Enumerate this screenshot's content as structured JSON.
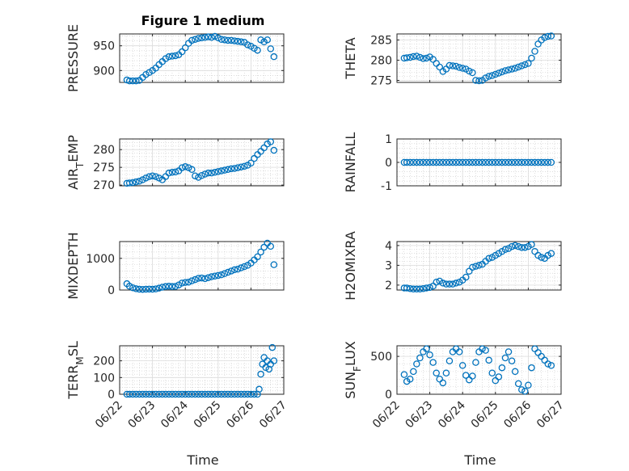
{
  "figure": {
    "title": "Figure 1 medium"
  },
  "colors": {
    "marker": "#0072bd",
    "grid": "#c8c8c8",
    "axis": "#262626"
  },
  "chart_data": [
    {
      "type": "scatter",
      "ylabel": "PRESSURE",
      "ylim": [
        876,
        974
      ],
      "yticks": [
        900,
        950
      ],
      "xlim": [
        0,
        5
      ],
      "x": [
        0.22,
        0.3,
        0.4,
        0.5,
        0.6,
        0.7,
        0.8,
        0.9,
        1.0,
        1.1,
        1.2,
        1.3,
        1.4,
        1.5,
        1.6,
        1.7,
        1.8,
        1.9,
        2.0,
        2.1,
        2.2,
        2.3,
        2.4,
        2.5,
        2.6,
        2.7,
        2.8,
        2.9,
        3.0,
        3.1,
        3.2,
        3.3,
        3.4,
        3.5,
        3.6,
        3.7,
        3.8,
        3.9,
        4.0,
        4.1,
        4.2,
        4.3,
        4.4,
        4.5,
        4.6,
        4.7
      ],
      "y": [
        881,
        879,
        879,
        879,
        880,
        886,
        892,
        896,
        900,
        905,
        912,
        918,
        924,
        928,
        929,
        930,
        932,
        938,
        946,
        955,
        961,
        963,
        965,
        966,
        967,
        968,
        967,
        969,
        966,
        963,
        962,
        961,
        961,
        960,
        959,
        958,
        957,
        952,
        949,
        945,
        941,
        962,
        958,
        962,
        944,
        928
      ]
    },
    {
      "type": "scatter",
      "ylabel": "THETA",
      "ylim": [
        274.5,
        286.5
      ],
      "yticks": [
        275,
        280,
        285
      ],
      "xlim": [
        0,
        5
      ],
      "x": [
        0.22,
        0.3,
        0.4,
        0.5,
        0.6,
        0.7,
        0.8,
        0.9,
        1.0,
        1.1,
        1.2,
        1.3,
        1.4,
        1.5,
        1.6,
        1.7,
        1.8,
        1.9,
        2.0,
        2.1,
        2.2,
        2.3,
        2.4,
        2.5,
        2.6,
        2.7,
        2.8,
        2.9,
        3.0,
        3.1,
        3.2,
        3.3,
        3.4,
        3.5,
        3.6,
        3.7,
        3.8,
        3.9,
        4.0,
        4.1,
        4.2,
        4.3,
        4.4,
        4.5,
        4.6,
        4.7
      ],
      "y": [
        280.5,
        280.6,
        280.7,
        280.9,
        281.0,
        280.7,
        280.4,
        280.5,
        280.8,
        280.2,
        279.2,
        278.3,
        277.2,
        277.8,
        278.7,
        278.6,
        278.5,
        278.2,
        278.0,
        277.8,
        277.3,
        276.9,
        275.0,
        274.9,
        275.0,
        275.6,
        276.0,
        276.2,
        276.5,
        276.8,
        277.1,
        277.4,
        277.6,
        277.8,
        278.0,
        278.3,
        278.6,
        278.9,
        279.2,
        280.5,
        282.2,
        284.0,
        285.0,
        285.6,
        285.9,
        286.0
      ]
    },
    {
      "type": "scatter",
      "ylabel": "AIR_TEMP",
      "ylim": [
        269.8,
        283
      ],
      "yticks": [
        270,
        275,
        280
      ],
      "xlim": [
        0,
        5
      ],
      "x": [
        0.22,
        0.3,
        0.4,
        0.5,
        0.6,
        0.7,
        0.8,
        0.9,
        1.0,
        1.1,
        1.2,
        1.3,
        1.4,
        1.5,
        1.6,
        1.7,
        1.8,
        1.9,
        2.0,
        2.1,
        2.2,
        2.3,
        2.4,
        2.5,
        2.6,
        2.7,
        2.8,
        2.9,
        3.0,
        3.1,
        3.2,
        3.3,
        3.4,
        3.5,
        3.6,
        3.7,
        3.8,
        3.9,
        4.0,
        4.1,
        4.2,
        4.3,
        4.4,
        4.5,
        4.6,
        4.7
      ],
      "y": [
        270.5,
        270.6,
        270.7,
        270.9,
        271.1,
        271.5,
        272.0,
        272.4,
        272.6,
        272.4,
        272.0,
        271.5,
        272.4,
        273.4,
        273.6,
        273.7,
        274.0,
        274.9,
        275.2,
        274.9,
        274.4,
        272.6,
        272.2,
        272.7,
        273.1,
        273.4,
        273.4,
        273.6,
        273.8,
        274.0,
        274.2,
        274.4,
        274.6,
        274.7,
        274.9,
        275.1,
        275.3,
        275.6,
        276.2,
        277.5,
        278.6,
        279.5,
        280.5,
        281.6,
        282.2,
        279.8
      ]
    },
    {
      "type": "scatter",
      "ylabel": "RAINFALL",
      "ylim": [
        -1,
        1
      ],
      "yticks": [
        -1,
        0,
        1
      ],
      "xlim": [
        0,
        5
      ],
      "x": [
        0.22,
        0.3,
        0.4,
        0.5,
        0.6,
        0.7,
        0.8,
        0.9,
        1.0,
        1.1,
        1.2,
        1.3,
        1.4,
        1.5,
        1.6,
        1.7,
        1.8,
        1.9,
        2.0,
        2.1,
        2.2,
        2.3,
        2.4,
        2.5,
        2.6,
        2.7,
        2.8,
        2.9,
        3.0,
        3.1,
        3.2,
        3.3,
        3.4,
        3.5,
        3.6,
        3.7,
        3.8,
        3.9,
        4.0,
        4.1,
        4.2,
        4.3,
        4.4,
        4.5,
        4.6,
        4.7
      ],
      "y": [
        0,
        0,
        0,
        0,
        0,
        0,
        0,
        0,
        0,
        0,
        0,
        0,
        0,
        0,
        0,
        0,
        0,
        0,
        0,
        0,
        0,
        0,
        0,
        0,
        0,
        0,
        0,
        0,
        0,
        0,
        0,
        0,
        0,
        0,
        0,
        0,
        0,
        0,
        0,
        0,
        0,
        0,
        0,
        0,
        0,
        0
      ]
    },
    {
      "type": "scatter",
      "ylabel": "MIXDEPTH",
      "ylim": [
        0,
        1530
      ],
      "yticks": [
        0,
        1000
      ],
      "xlim": [
        0,
        5
      ],
      "x": [
        0.22,
        0.3,
        0.4,
        0.5,
        0.6,
        0.7,
        0.8,
        0.9,
        1.0,
        1.1,
        1.2,
        1.3,
        1.4,
        1.5,
        1.6,
        1.7,
        1.8,
        1.9,
        2.0,
        2.1,
        2.2,
        2.3,
        2.4,
        2.5,
        2.6,
        2.7,
        2.8,
        2.9,
        3.0,
        3.1,
        3.2,
        3.3,
        3.4,
        3.5,
        3.6,
        3.7,
        3.8,
        3.9,
        4.0,
        4.1,
        4.2,
        4.3,
        4.4,
        4.5,
        4.6,
        4.7
      ],
      "y": [
        200,
        120,
        70,
        40,
        25,
        20,
        25,
        30,
        25,
        35,
        60,
        90,
        110,
        120,
        110,
        115,
        160,
        220,
        240,
        250,
        290,
        330,
        370,
        380,
        360,
        390,
        420,
        440,
        460,
        480,
        520,
        560,
        600,
        640,
        660,
        700,
        740,
        780,
        850,
        950,
        1050,
        1200,
        1350,
        1480,
        1380,
        800
      ]
    },
    {
      "type": "scatter",
      "ylabel": "H2OMIXRA",
      "ylim": [
        1.75,
        4.2
      ],
      "yticks": [
        2,
        3,
        4
      ],
      "xlim": [
        0,
        5
      ],
      "x": [
        0.22,
        0.3,
        0.4,
        0.5,
        0.6,
        0.7,
        0.8,
        0.9,
        1.0,
        1.1,
        1.2,
        1.3,
        1.4,
        1.5,
        1.6,
        1.7,
        1.8,
        1.9,
        2.0,
        2.1,
        2.2,
        2.3,
        2.4,
        2.5,
        2.6,
        2.7,
        2.8,
        2.9,
        3.0,
        3.1,
        3.2,
        3.3,
        3.4,
        3.5,
        3.6,
        3.7,
        3.8,
        3.9,
        4.0,
        4.1,
        4.2,
        4.3,
        4.4,
        4.5,
        4.6,
        4.7
      ],
      "y": [
        1.85,
        1.85,
        1.82,
        1.8,
        1.8,
        1.8,
        1.82,
        1.85,
        1.88,
        1.95,
        2.15,
        2.2,
        2.1,
        2.05,
        2.05,
        2.05,
        2.1,
        2.15,
        2.25,
        2.4,
        2.7,
        2.9,
        2.95,
        3.0,
        3.05,
        3.2,
        3.35,
        3.4,
        3.5,
        3.6,
        3.7,
        3.8,
        3.85,
        3.95,
        4.0,
        3.95,
        3.9,
        3.9,
        3.95,
        4.05,
        3.7,
        3.5,
        3.4,
        3.35,
        3.5,
        3.6
      ]
    },
    {
      "type": "scatter",
      "ylabel": "TERR_MSL",
      "ylim": [
        0,
        290
      ],
      "yticks": [
        0,
        100,
        200
      ],
      "xlim": [
        0,
        5
      ],
      "x": [
        0.22,
        0.3,
        0.4,
        0.5,
        0.6,
        0.7,
        0.8,
        0.9,
        1.0,
        1.1,
        1.2,
        1.3,
        1.4,
        1.5,
        1.6,
        1.7,
        1.8,
        1.9,
        2.0,
        2.1,
        2.2,
        2.3,
        2.4,
        2.5,
        2.6,
        2.7,
        2.8,
        2.9,
        3.0,
        3.1,
        3.2,
        3.3,
        3.4,
        3.5,
        3.6,
        3.7,
        3.8,
        3.9,
        4.0,
        4.1,
        4.2,
        4.25,
        4.3,
        4.35,
        4.4,
        4.45,
        4.5,
        4.55,
        4.6,
        4.65,
        4.7
      ],
      "y": [
        0,
        0,
        0,
        0,
        0,
        0,
        0,
        0,
        0,
        0,
        0,
        0,
        0,
        0,
        0,
        0,
        0,
        0,
        0,
        0,
        0,
        0,
        0,
        0,
        0,
        0,
        0,
        0,
        0,
        0,
        0,
        0,
        0,
        0,
        0,
        0,
        0,
        0,
        0,
        0,
        0,
        30,
        120,
        180,
        220,
        160,
        200,
        150,
        180,
        280,
        200
      ]
    },
    {
      "type": "scatter",
      "ylabel": "SUN_FLUX",
      "ylim": [
        0,
        640
      ],
      "yticks": [
        0,
        500
      ],
      "xlim": [
        0,
        5
      ],
      "x": [
        0.22,
        0.3,
        0.4,
        0.5,
        0.6,
        0.7,
        0.8,
        0.9,
        1.0,
        1.1,
        1.2,
        1.3,
        1.4,
        1.5,
        1.6,
        1.7,
        1.8,
        1.9,
        2.0,
        2.1,
        2.2,
        2.3,
        2.4,
        2.5,
        2.6,
        2.7,
        2.8,
        2.9,
        3.0,
        3.1,
        3.2,
        3.3,
        3.4,
        3.5,
        3.6,
        3.7,
        3.8,
        3.9,
        4.0,
        4.1,
        4.2,
        4.3,
        4.4,
        4.5,
        4.6,
        4.7
      ],
      "y": [
        260,
        170,
        200,
        300,
        400,
        480,
        560,
        600,
        520,
        420,
        280,
        200,
        150,
        280,
        440,
        560,
        600,
        560,
        380,
        250,
        190,
        240,
        420,
        560,
        600,
        580,
        450,
        280,
        180,
        230,
        350,
        480,
        560,
        440,
        300,
        140,
        60,
        40,
        120,
        350,
        600,
        550,
        500,
        450,
        400,
        380
      ]
    }
  ],
  "xaxis": {
    "ticks": [
      0,
      1,
      2,
      3,
      4,
      5
    ],
    "tick_labels": [
      "06/22",
      "06/23",
      "06/24",
      "06/25",
      "06/26",
      "06/27"
    ],
    "label": "Time"
  }
}
